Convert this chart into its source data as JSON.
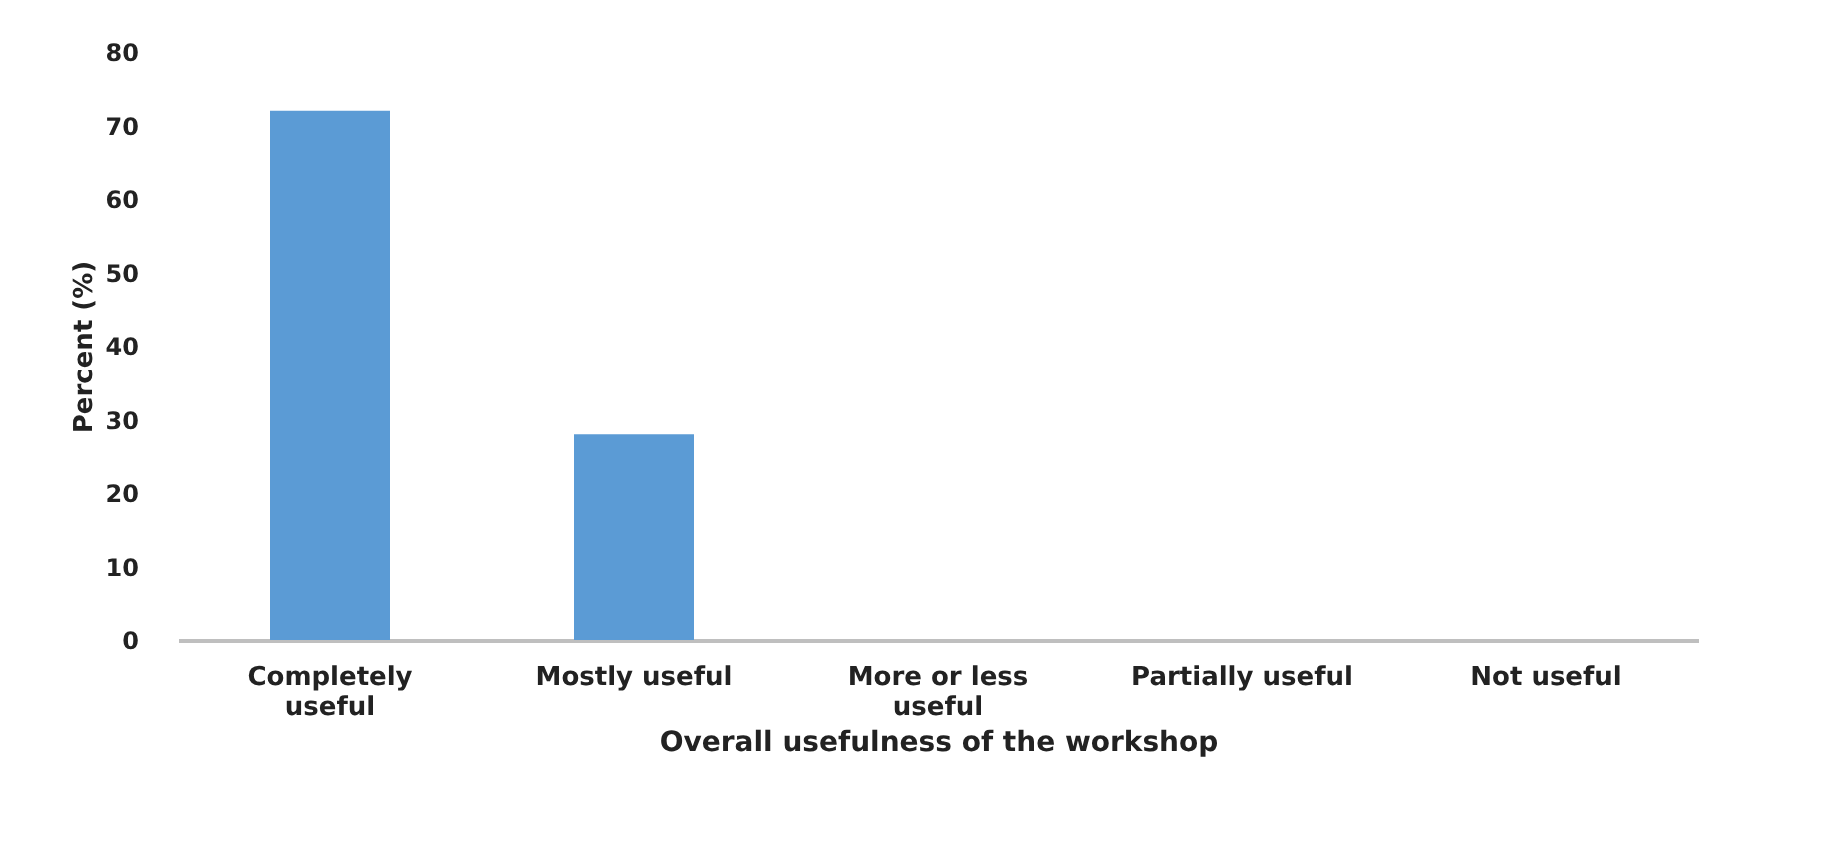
{
  "chart_data": {
    "type": "bar",
    "xlabel": "Overall usefulness of the workshop",
    "ylabel": "Percent (%)",
    "categories": [
      "Completely useful",
      "Mostly useful",
      "More or less useful",
      "Partially useful",
      "Not useful"
    ],
    "values": [
      72,
      28,
      0,
      0,
      0
    ],
    "color": "#5b9bd5",
    "ylim": [
      0,
      80
    ],
    "yticks": [
      0,
      10,
      20,
      30,
      40,
      50,
      60,
      70,
      80
    ],
    "grid": false
  }
}
